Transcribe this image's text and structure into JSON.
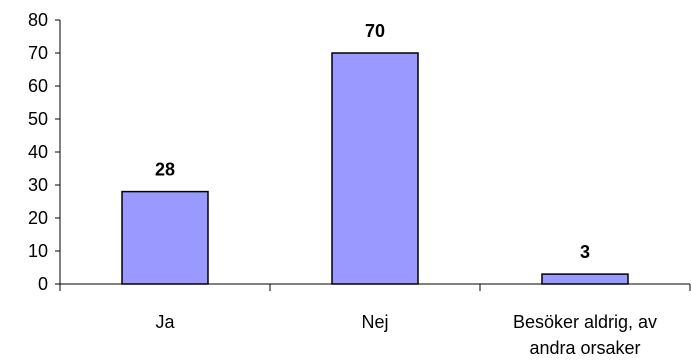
{
  "chart_data": {
    "type": "bar",
    "categories": [
      "Ja",
      "Nej",
      "Besöker aldrig, av andra orsaker"
    ],
    "category_label_lines": [
      [
        "Ja"
      ],
      [
        "Nej"
      ],
      [
        "Besöker aldrig, av",
        "andra orsaker"
      ]
    ],
    "values": [
      28,
      70,
      3
    ],
    "data_labels": [
      "28",
      "70",
      "3"
    ],
    "ylim": [
      0,
      80
    ],
    "y_ticks": [
      0,
      10,
      20,
      30,
      40,
      50,
      60,
      70,
      80
    ],
    "y_tick_labels": [
      "0",
      "10",
      "20",
      "30",
      "40",
      "50",
      "60",
      "70",
      "80"
    ],
    "title": "",
    "xlabel": "",
    "ylabel": "",
    "grid": false,
    "legend": "none",
    "colors": {
      "bar_fill": "#9999ff",
      "bar_stroke": "#000000",
      "axis": "#000000"
    }
  }
}
